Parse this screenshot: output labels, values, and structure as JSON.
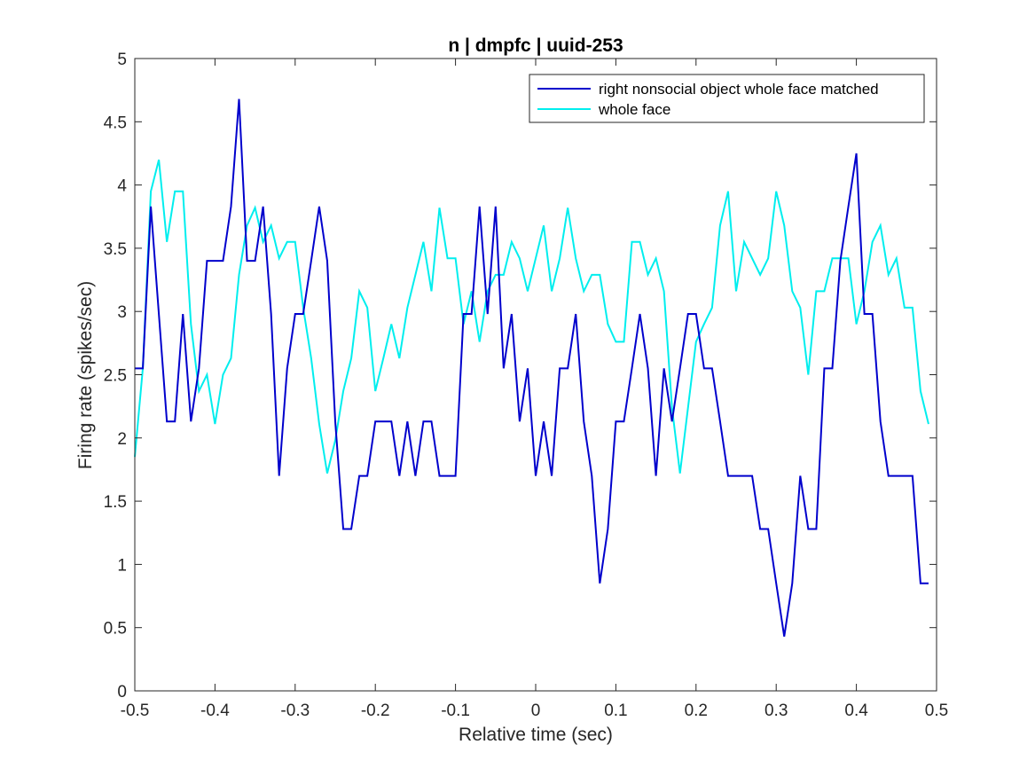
{
  "chart_data": {
    "type": "line",
    "title": "n | dmpfc | uuid-253",
    "xlabel": "Relative time (sec)",
    "ylabel": "Firing rate (spikes/sec)",
    "xlim": [
      -0.5,
      0.5
    ],
    "ylim": [
      0,
      5
    ],
    "xticks": [
      -0.5,
      -0.4,
      -0.3,
      -0.2,
      -0.1,
      0,
      0.1,
      0.2,
      0.3,
      0.4,
      0.5
    ],
    "xtick_labels": [
      "-0.5",
      "-0.4",
      "-0.3",
      "-0.2",
      "-0.1",
      "0",
      "0.1",
      "0.2",
      "0.3",
      "0.4",
      "0.5"
    ],
    "yticks": [
      0,
      0.5,
      1,
      1.5,
      2,
      2.5,
      3,
      3.5,
      4,
      4.5,
      5
    ],
    "ytick_labels": [
      "0",
      "0.5",
      "1",
      "1.5",
      "2",
      "2.5",
      "3",
      "3.5",
      "4",
      "4.5",
      "5"
    ],
    "grid": false,
    "legend_position": "top-right",
    "x": [
      -0.5,
      -0.49,
      -0.48,
      -0.47,
      -0.46,
      -0.45,
      -0.44,
      -0.43,
      -0.42,
      -0.41,
      -0.4,
      -0.39,
      -0.38,
      -0.37,
      -0.36,
      -0.35,
      -0.34,
      -0.33,
      -0.32,
      -0.31,
      -0.3,
      -0.29,
      -0.28,
      -0.27,
      -0.26,
      -0.25,
      -0.24,
      -0.23,
      -0.22,
      -0.21,
      -0.2,
      -0.19,
      -0.18,
      -0.17,
      -0.16,
      -0.15,
      -0.14,
      -0.13,
      -0.12,
      -0.11,
      -0.1,
      -0.09,
      -0.08,
      -0.07,
      -0.06,
      -0.05,
      -0.04,
      -0.03,
      -0.02,
      -0.01,
      0,
      0.01,
      0.02,
      0.03,
      0.04,
      0.05,
      0.06,
      0.07,
      0.08,
      0.09,
      0.1,
      0.11,
      0.12,
      0.13,
      0.14,
      0.15,
      0.16,
      0.17,
      0.18,
      0.19,
      0.2,
      0.21,
      0.22,
      0.23,
      0.24,
      0.25,
      0.26,
      0.27,
      0.28,
      0.29,
      0.3,
      0.31,
      0.32,
      0.33,
      0.34,
      0.35,
      0.36,
      0.37,
      0.38,
      0.39,
      0.4,
      0.41,
      0.42,
      0.43,
      0.44,
      0.45,
      0.46,
      0.47,
      0.48,
      0.49
    ],
    "series": [
      {
        "name": "right nonsocial object whole face matched",
        "color": "#0000cc",
        "values": [
          2.55,
          2.55,
          3.83,
          2.98,
          2.13,
          2.13,
          2.98,
          2.13,
          2.55,
          3.4,
          3.4,
          3.4,
          3.83,
          4.68,
          3.4,
          3.4,
          3.83,
          2.98,
          1.7,
          2.55,
          2.98,
          2.98,
          3.4,
          3.83,
          3.4,
          2.13,
          1.28,
          1.28,
          1.7,
          1.7,
          2.13,
          2.13,
          2.13,
          1.7,
          2.13,
          1.7,
          2.13,
          2.13,
          1.7,
          1.7,
          1.7,
          2.98,
          2.98,
          3.83,
          2.98,
          3.83,
          2.55,
          2.98,
          2.13,
          2.55,
          1.7,
          2.13,
          1.7,
          2.55,
          2.55,
          2.98,
          2.13,
          1.7,
          0.85,
          1.28,
          2.13,
          2.13,
          2.55,
          2.98,
          2.55,
          1.7,
          2.55,
          2.13,
          2.55,
          2.98,
          2.98,
          2.55,
          2.55,
          2.13,
          1.7,
          1.7,
          1.7,
          1.7,
          1.28,
          1.28,
          0.85,
          0.43,
          0.85,
          1.7,
          1.28,
          1.28,
          2.55,
          2.55,
          3.4,
          3.83,
          4.25,
          2.98,
          2.98,
          2.13,
          1.7,
          1.7,
          1.7,
          1.7,
          0.85,
          0.85
        ]
      },
      {
        "name": "whole face",
        "color": "#00eeee",
        "values": [
          1.85,
          2.55,
          3.95,
          4.2,
          3.55,
          3.95,
          3.95,
          2.9,
          2.37,
          2.5,
          2.11,
          2.5,
          2.63,
          3.29,
          3.68,
          3.82,
          3.55,
          3.68,
          3.42,
          3.55,
          3.55,
          3.03,
          2.63,
          2.11,
          1.72,
          1.98,
          2.37,
          2.63,
          3.16,
          3.03,
          2.37,
          2.63,
          2.9,
          2.63,
          3.03,
          3.29,
          3.55,
          3.16,
          3.82,
          3.42,
          3.42,
          2.9,
          3.16,
          2.76,
          3.16,
          3.29,
          3.29,
          3.55,
          3.42,
          3.16,
          3.42,
          3.68,
          3.16,
          3.42,
          3.82,
          3.42,
          3.16,
          3.29,
          3.29,
          2.9,
          2.76,
          2.76,
          3.55,
          3.55,
          3.29,
          3.42,
          3.16,
          2.24,
          1.72,
          2.24,
          2.76,
          2.9,
          3.03,
          3.68,
          3.95,
          3.16,
          3.55,
          3.42,
          3.29,
          3.42,
          3.95,
          3.68,
          3.16,
          3.03,
          2.5,
          3.16,
          3.16,
          3.42,
          3.42,
          3.42,
          2.9,
          3.16,
          3.55,
          3.68,
          3.29,
          3.42,
          3.03,
          3.03,
          2.37,
          2.11
        ]
      }
    ]
  }
}
